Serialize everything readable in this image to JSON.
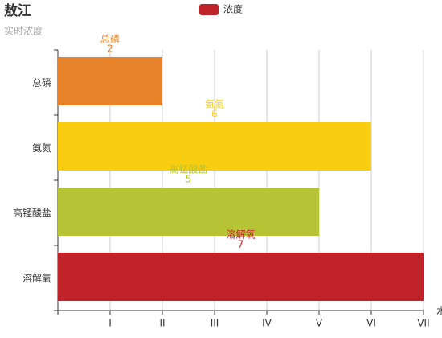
{
  "chart_data": {
    "type": "hbar",
    "title": "敖江",
    "subtitle": "实时浓度",
    "x_label": "水",
    "categories": [
      "总磷",
      "氨氮",
      "高锰酸盐",
      "溶解氧"
    ],
    "series": [
      {
        "name": "浓度",
        "color": "#c1232b",
        "values": [
          2,
          6,
          5,
          7
        ]
      }
    ],
    "bar_colors": [
      "#e8832a",
      "#f9cd10",
      "#b5c334",
      "#c1232b"
    ],
    "xlim": [
      0,
      7
    ],
    "xticks": [
      {
        "value": 1,
        "label": "I"
      },
      {
        "value": 2,
        "label": "II"
      },
      {
        "value": 3,
        "label": "III"
      },
      {
        "value": 4,
        "label": "IV"
      },
      {
        "value": 5,
        "label": "V"
      },
      {
        "value": 6,
        "label": "VI"
      },
      {
        "value": 7,
        "label": "VII"
      }
    ],
    "grid": true
  }
}
